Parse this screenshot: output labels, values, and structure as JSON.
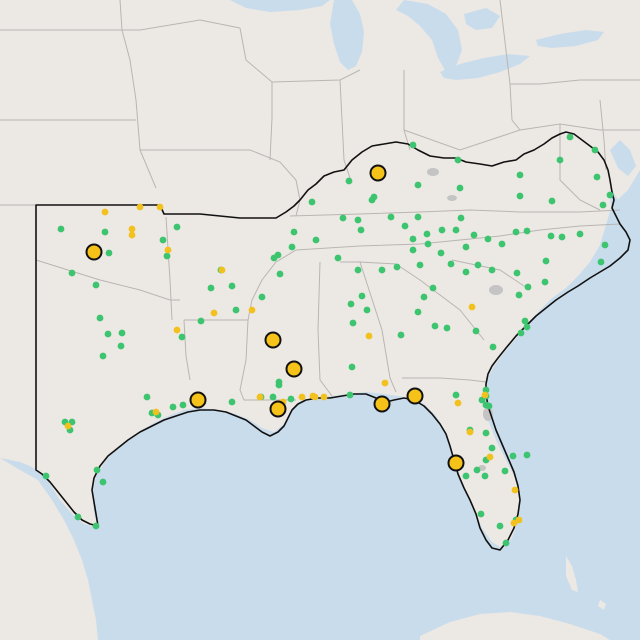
{
  "map": {
    "colors": {
      "water": "#c9dcec",
      "land": "#ece8e4",
      "state_border": "#b9b5b2",
      "region_outline": "#111111",
      "green_point": "#3dc46f",
      "yellow_point": "#f2c11d",
      "large_marker_fill": "#f5c21a",
      "large_marker_stroke": "#111111",
      "urban_area": "#c4c4c4"
    },
    "point_categories": [
      {
        "name": "green-site",
        "color": "#3dc46f"
      },
      {
        "name": "yellow-site",
        "color": "#f2c11d"
      },
      {
        "name": "major-yellow-site",
        "color": "#f5c21a"
      }
    ]
  }
}
